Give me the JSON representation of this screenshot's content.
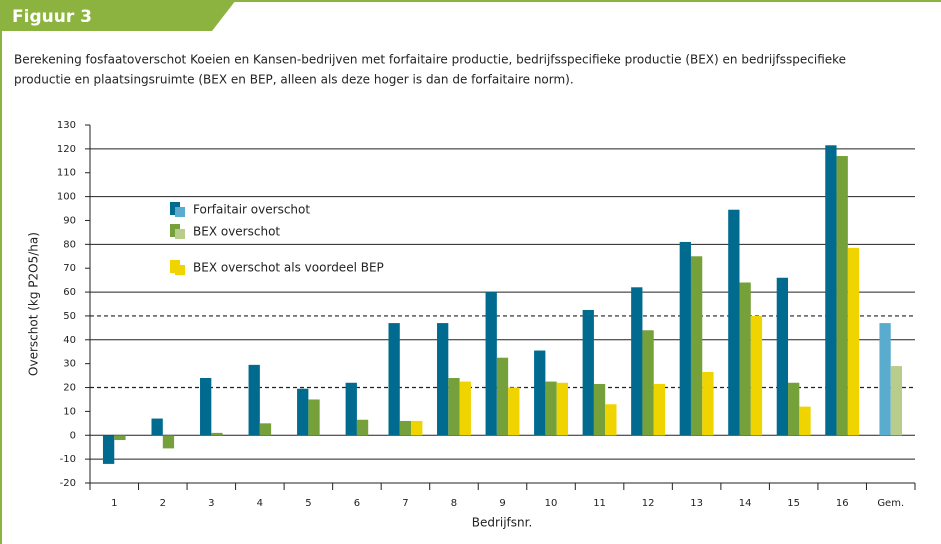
{
  "figure_label": "Figuur 3",
  "caption": [
    "Berekening fosfaatoverschot Koeien en Kansen-bedrijven met forfaitaire productie, bedrijfsspecifieke productie (BEX) en bedrijfsspecifieke",
    "productie en plaatsingsruimte (BEX en BEP, alleen als deze hoger is dan de forfaitaire norm)."
  ],
  "chart_data": {
    "type": "bar",
    "y_label": "Overschot (kg P2O5/ha)",
    "x_label": "Bedrijfsnr.",
    "categories": [
      "1",
      "2",
      "3",
      "4",
      "5",
      "6",
      "7",
      "8",
      "9",
      "10",
      "11",
      "12",
      "13",
      "14",
      "15",
      "16",
      "Gem."
    ],
    "series": [
      {
        "name": "Forfaitair overschot",
        "color": "#006b8f",
        "avg_color": "#5aaccf",
        "values": [
          -12,
          7,
          24,
          29.5,
          19.5,
          22,
          47,
          47,
          60,
          35.5,
          52.5,
          62,
          81,
          94.5,
          66,
          121.5,
          47
        ]
      },
      {
        "name": "BEX overschot",
        "color": "#76a03a",
        "avg_color": "#b8cc8c",
        "values": [
          -2,
          -5.5,
          1,
          5,
          15,
          6.5,
          6,
          24,
          32.5,
          22.5,
          21.5,
          44,
          75,
          64,
          22,
          117,
          29
        ]
      },
      {
        "name": "BEX overschot als voordeel BEP",
        "color": "#f0d400",
        "avg_color": "#f0d400",
        "values": [
          null,
          null,
          null,
          null,
          null,
          null,
          6,
          22.5,
          20,
          22,
          13,
          21.5,
          26.5,
          50,
          12,
          78.5,
          null
        ]
      }
    ],
    "ylim": [
      -20,
      130
    ],
    "yticks": [
      -20,
      -10,
      0,
      10,
      20,
      30,
      40,
      50,
      60,
      70,
      80,
      90,
      100,
      110,
      120,
      130
    ],
    "grid_lines": [
      -10,
      0,
      40,
      60,
      80,
      100,
      120
    ],
    "dashed_lines": [
      20,
      50
    ]
  }
}
